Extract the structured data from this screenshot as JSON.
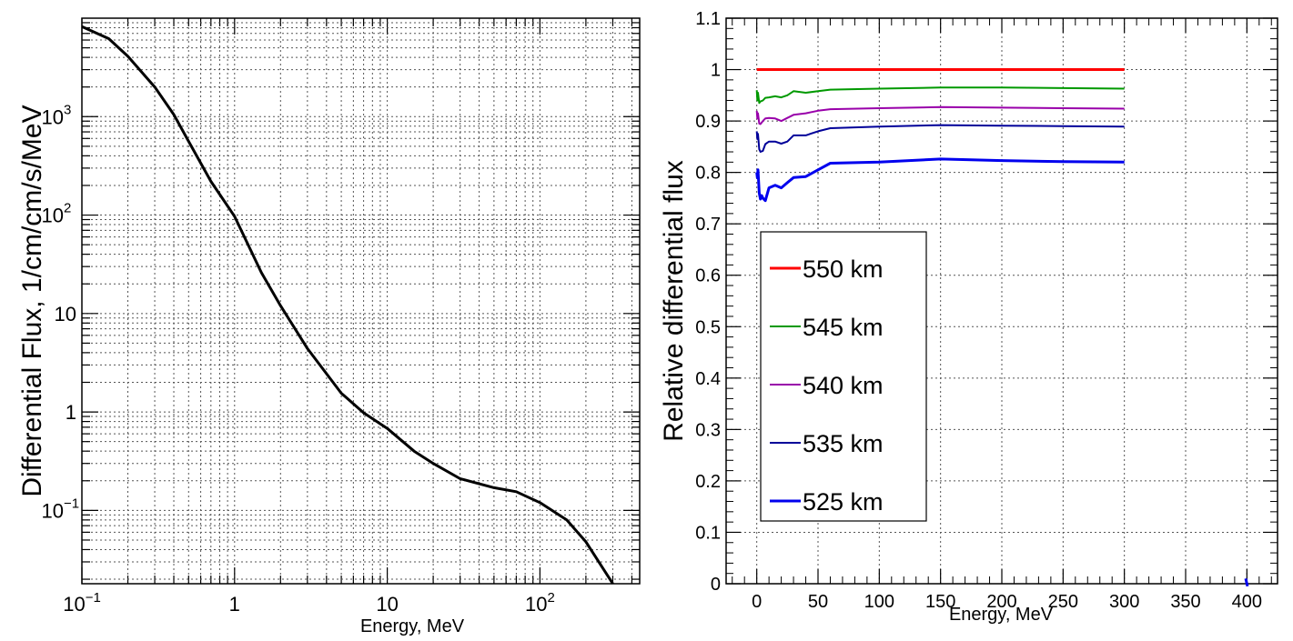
{
  "chart_data": [
    {
      "type": "line",
      "title": "",
      "xlabel": "Energy, MeV",
      "ylabel": "Differential Flux, 1/cm/cm/s/MeV",
      "xscale": "log",
      "yscale": "log",
      "xlim": [
        0.1,
        450
      ],
      "ylim": [
        0.018,
        10000
      ],
      "grid": true,
      "x_tick_labels": [
        {
          "value": 0.1,
          "base": "10",
          "exp": "−1"
        },
        {
          "value": 1,
          "base": "1",
          "exp": ""
        },
        {
          "value": 10,
          "base": "10",
          "exp": ""
        },
        {
          "value": 100,
          "base": "10",
          "exp": "2"
        }
      ],
      "y_tick_labels": [
        {
          "value": 0.1,
          "base": "10",
          "exp": "−1"
        },
        {
          "value": 1,
          "base": "1",
          "exp": ""
        },
        {
          "value": 10,
          "base": "10",
          "exp": ""
        },
        {
          "value": 100,
          "base": "10",
          "exp": "2"
        },
        {
          "value": 1000,
          "base": "10",
          "exp": "3"
        }
      ],
      "series": [
        {
          "name": "flux",
          "color": "#000000",
          "x": [
            0.1,
            0.15,
            0.2,
            0.3,
            0.4,
            0.5,
            0.7,
            1,
            1.5,
            2,
            3,
            5,
            7,
            10,
            15,
            20,
            30,
            50,
            70,
            100,
            150,
            200,
            300
          ],
          "y": [
            8200,
            6200,
            4100,
            2000,
            1050,
            560,
            220,
            97,
            26,
            12,
            4.4,
            1.55,
            0.98,
            0.68,
            0.4,
            0.3,
            0.21,
            0.17,
            0.155,
            0.12,
            0.08,
            0.048,
            0.018
          ]
        }
      ]
    },
    {
      "type": "line",
      "title": "",
      "xlabel": "Energy, MeV",
      "ylabel": "Relative differential flux",
      "xlim": [
        -25,
        425
      ],
      "ylim": [
        0,
        1.1
      ],
      "grid": true,
      "x_ticks": [
        0,
        50,
        100,
        150,
        200,
        250,
        300,
        350,
        400
      ],
      "x_tick_labels": [
        "0",
        "50",
        "100",
        "150",
        "200",
        "250",
        "300",
        "350",
        "400"
      ],
      "y_ticks": [
        0,
        0.1,
        0.2,
        0.3,
        0.4,
        0.5,
        0.6,
        0.7,
        0.8,
        0.9,
        1,
        1.1
      ],
      "y_tick_labels": [
        "0",
        "0.1",
        "0.2",
        "0.3",
        "0.4",
        "0.5",
        "0.6",
        "0.7",
        "0.8",
        "0.9",
        "1",
        "1.1"
      ],
      "legend_position": "lower-left",
      "series": [
        {
          "name": "550 km",
          "color": "#ff0000",
          "width": 3,
          "x": [
            0,
            300
          ],
          "y": [
            1.0,
            1.0
          ]
        },
        {
          "name": "545 km",
          "color": "#009900",
          "width": 2,
          "x": [
            0,
            0.5,
            1,
            2,
            3,
            5,
            7,
            10,
            15,
            20,
            25,
            30,
            40,
            50,
            60,
            100,
            150,
            200,
            250,
            300
          ],
          "y": [
            0.96,
            0.94,
            0.955,
            0.935,
            0.938,
            0.94,
            0.945,
            0.946,
            0.948,
            0.946,
            0.95,
            0.958,
            0.955,
            0.958,
            0.961,
            0.963,
            0.965,
            0.965,
            0.964,
            0.963
          ],
          "tail": {
            "x": [
              300
            ],
            "y": [
              0.963
            ]
          }
        },
        {
          "name": "540 km",
          "color": "#9900aa",
          "width": 2,
          "x": [
            0,
            0.5,
            1,
            2,
            3,
            5,
            7,
            10,
            15,
            20,
            25,
            30,
            40,
            50,
            60,
            100,
            150,
            200,
            250,
            300
          ],
          "y": [
            0.92,
            0.905,
            0.915,
            0.895,
            0.894,
            0.9,
            0.905,
            0.906,
            0.905,
            0.9,
            0.906,
            0.912,
            0.915,
            0.92,
            0.923,
            0.925,
            0.927,
            0.926,
            0.925,
            0.924
          ]
        },
        {
          "name": "535 km",
          "color": "#000099",
          "width": 2,
          "x": [
            0,
            0.5,
            1,
            2,
            3,
            5,
            7,
            10,
            15,
            20,
            25,
            30,
            40,
            50,
            60,
            100,
            150,
            200,
            250,
            300
          ],
          "y": [
            0.88,
            0.865,
            0.875,
            0.845,
            0.84,
            0.842,
            0.855,
            0.86,
            0.86,
            0.856,
            0.86,
            0.872,
            0.872,
            0.88,
            0.886,
            0.889,
            0.892,
            0.891,
            0.89,
            0.889
          ]
        },
        {
          "name": "525 km",
          "color": "#0000ee",
          "width": 3,
          "x": [
            0,
            0.5,
            1,
            2,
            3,
            4,
            5,
            7,
            10,
            15,
            20,
            25,
            30,
            40,
            50,
            60,
            100,
            150,
            200,
            250,
            300
          ],
          "y": [
            0.8,
            0.79,
            0.805,
            0.76,
            0.748,
            0.755,
            0.75,
            0.745,
            0.77,
            0.775,
            0.77,
            0.78,
            0.79,
            0.792,
            0.805,
            0.818,
            0.82,
            0.826,
            0.823,
            0.821,
            0.82
          ],
          "outlier": {
            "x": [
              399,
              400.5
            ],
            "y": [
              0.01,
              -0.005
            ]
          }
        }
      ]
    }
  ]
}
